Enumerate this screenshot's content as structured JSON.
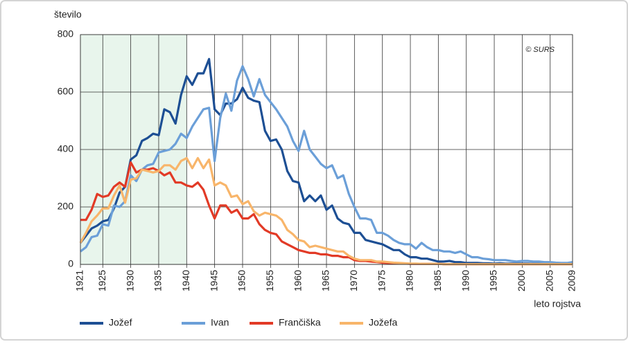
{
  "chart_data": {
    "type": "line",
    "y_label": "število",
    "x_label": "leto rojstva",
    "annotation": "© SURS",
    "x": [
      1921,
      1922,
      1923,
      1924,
      1925,
      1926,
      1927,
      1928,
      1929,
      1930,
      1931,
      1932,
      1933,
      1934,
      1935,
      1936,
      1937,
      1938,
      1939,
      1940,
      1941,
      1942,
      1943,
      1944,
      1945,
      1946,
      1947,
      1948,
      1949,
      1950,
      1951,
      1952,
      1953,
      1954,
      1955,
      1956,
      1957,
      1958,
      1959,
      1960,
      1961,
      1962,
      1963,
      1964,
      1965,
      1966,
      1967,
      1968,
      1969,
      1970,
      1971,
      1972,
      1973,
      1974,
      1975,
      1976,
      1977,
      1978,
      1979,
      1980,
      1981,
      1982,
      1983,
      1984,
      1985,
      1986,
      1987,
      1988,
      1989,
      1990,
      1991,
      1992,
      1993,
      1994,
      1995,
      1996,
      1997,
      1998,
      1999,
      2000,
      2001,
      2002,
      2003,
      2004,
      2005,
      2006,
      2007,
      2008,
      2009
    ],
    "series": [
      {
        "name": "Jožef",
        "color": "#1d4f94",
        "values": [
          75,
          100,
          125,
          135,
          150,
          155,
          195,
          250,
          270,
          365,
          380,
          430,
          440,
          455,
          450,
          540,
          530,
          490,
          590,
          655,
          625,
          665,
          665,
          715,
          540,
          520,
          560,
          560,
          575,
          615,
          580,
          570,
          565,
          465,
          430,
          435,
          400,
          325,
          290,
          285,
          220,
          240,
          220,
          240,
          190,
          205,
          160,
          145,
          140,
          110,
          110,
          85,
          80,
          75,
          70,
          60,
          50,
          50,
          35,
          25,
          25,
          20,
          20,
          15,
          10,
          10,
          12,
          8,
          8,
          5,
          5,
          5,
          4,
          4,
          3,
          4,
          3,
          3,
          3,
          3,
          3,
          2,
          2,
          2,
          2,
          2,
          3,
          3,
          5
        ]
      },
      {
        "name": "Ivan",
        "color": "#6b9fd8",
        "values": [
          45,
          60,
          95,
          100,
          140,
          135,
          205,
          200,
          220,
          310,
          290,
          330,
          345,
          350,
          390,
          395,
          400,
          420,
          455,
          440,
          480,
          510,
          540,
          545,
          360,
          510,
          595,
          535,
          640,
          690,
          645,
          585,
          645,
          590,
          565,
          540,
          510,
          480,
          430,
          395,
          465,
          400,
          375,
          350,
          335,
          345,
          300,
          310,
          245,
          200,
          160,
          160,
          155,
          110,
          110,
          100,
          85,
          75,
          70,
          70,
          55,
          75,
          60,
          50,
          50,
          45,
          45,
          40,
          45,
          35,
          25,
          25,
          20,
          18,
          15,
          15,
          15,
          12,
          10,
          12,
          12,
          10,
          10,
          8,
          8,
          6,
          5,
          5,
          8
        ]
      },
      {
        "name": "Frančiška",
        "color": "#e23a26",
        "values": [
          155,
          155,
          190,
          245,
          235,
          240,
          270,
          285,
          270,
          355,
          320,
          330,
          330,
          335,
          325,
          310,
          320,
          285,
          285,
          275,
          270,
          285,
          260,
          205,
          160,
          205,
          205,
          180,
          190,
          160,
          160,
          175,
          140,
          120,
          110,
          105,
          80,
          70,
          60,
          50,
          45,
          40,
          40,
          35,
          35,
          30,
          30,
          25,
          25,
          15,
          12,
          12,
          10,
          8,
          6,
          5,
          4,
          3,
          3,
          2,
          2,
          2,
          2,
          2,
          2,
          1,
          1,
          1,
          1,
          1,
          1,
          1,
          1,
          1,
          1,
          1,
          1,
          1,
          1,
          1,
          1,
          1,
          1,
          1,
          1,
          1,
          1,
          1,
          1
        ]
      },
      {
        "name": "Jožefa",
        "color": "#f8b56a",
        "values": [
          75,
          110,
          150,
          170,
          195,
          195,
          240,
          275,
          215,
          295,
          300,
          330,
          325,
          320,
          325,
          345,
          345,
          330,
          360,
          370,
          335,
          370,
          335,
          365,
          275,
          285,
          275,
          235,
          240,
          210,
          220,
          185,
          170,
          180,
          175,
          170,
          155,
          120,
          105,
          85,
          80,
          60,
          65,
          60,
          55,
          50,
          45,
          45,
          30,
          20,
          15,
          15,
          15,
          10,
          10,
          8,
          6,
          5,
          4,
          3,
          3,
          2,
          2,
          2,
          2,
          1,
          1,
          1,
          1,
          1,
          1,
          1,
          1,
          1,
          1,
          1,
          1,
          1,
          1,
          1,
          1,
          1,
          1,
          1,
          1,
          1,
          1,
          1,
          1
        ]
      }
    ],
    "xlim": [
      1921,
      2009
    ],
    "xticks": [
      1921,
      1925,
      1930,
      1935,
      1940,
      1945,
      1950,
      1955,
      1960,
      1965,
      1970,
      1975,
      1980,
      1985,
      1990,
      1995,
      2000,
      2005,
      2009
    ],
    "ylim": [
      0,
      800
    ],
    "yticks": [
      0,
      200,
      400,
      600,
      800
    ],
    "shade": [
      1921,
      1940
    ],
    "grid": true,
    "legend": "bottom-left"
  }
}
